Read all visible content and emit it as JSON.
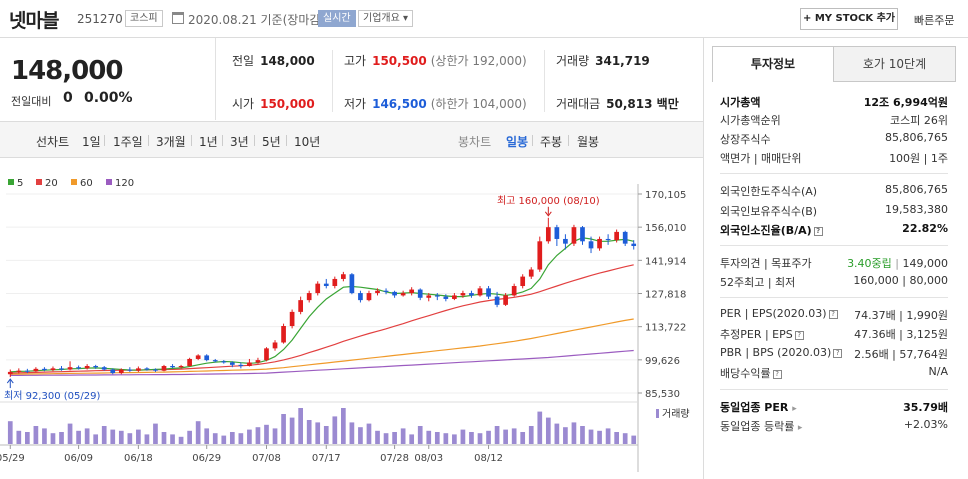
{
  "header": {
    "stock_name": "넷마블",
    "stock_code": "251270",
    "market": "코스피",
    "date": "2020.08.21 기준(장마감)",
    "realtime": "실시간",
    "company_info": "기업개요 ▾",
    "mystock": "+ MY STOCK 추가",
    "quick_order": "빠른주문"
  },
  "price": {
    "current": "148,000",
    "vs_label": "전일대비",
    "vs_value": "0",
    "vs_rate": "0.00%"
  },
  "quote": {
    "prev_label": "전일",
    "prev": "148,000",
    "high_label": "고가",
    "high": "150,500",
    "upper_limit": "(상한가 192,000)",
    "volume_label": "거래량",
    "volume": "341,719",
    "open_label": "시가",
    "open": "150,000",
    "low_label": "저가",
    "low": "146,500",
    "lower_limit": "(하한가 104,000)",
    "amount_label": "거래대금",
    "amount": "50,813 백만"
  },
  "period_bar": {
    "line": "선차트",
    "p1d": "1일",
    "p1w": "1주일",
    "p3m": "3개월",
    "p1y": "1년",
    "p3y": "3년",
    "p5y": "5년",
    "p10y": "10년",
    "candle": "봉차트",
    "daily": "일봉",
    "weekly": "주봉",
    "monthly": "월봉"
  },
  "colors": {
    "up": "#e01d1d",
    "down": "#1d5dd8",
    "ma5": "#3aa535",
    "ma20": "#e24040",
    "ma60": "#f09a2a",
    "ma120": "#9b5cc0",
    "volume": "#9b8ad1"
  },
  "chart_data": {
    "type": "candlestick",
    "legend": [
      "5",
      "20",
      "60",
      "120"
    ],
    "y_ticks": [
      "170,105",
      "156,010",
      "141,914",
      "127,818",
      "113,722",
      "99,626",
      "85,530"
    ],
    "y_tick_values": [
      170105,
      156010,
      141914,
      127818,
      113722,
      99626,
      85530
    ],
    "x_labels": [
      "05/29",
      "06/09",
      "06/18",
      "06/29",
      "07/08",
      "07/17",
      "07/28",
      "08/03",
      "08/12"
    ],
    "high_annotation": "최고 160,000 (08/10)",
    "low_annotation": "최저 92,300 (05/29)",
    "volume_label": "거래량",
    "candles": [
      {
        "o": 93500,
        "c": 94500,
        "h": 95500,
        "l": 92300
      },
      {
        "o": 94500,
        "c": 95000,
        "h": 96000,
        "l": 93800
      },
      {
        "o": 95000,
        "c": 94800,
        "h": 95800,
        "l": 94000
      },
      {
        "o": 94800,
        "c": 95800,
        "h": 96500,
        "l": 94500
      },
      {
        "o": 95800,
        "c": 95300,
        "h": 96500,
        "l": 94800
      },
      {
        "o": 95300,
        "c": 96000,
        "h": 96800,
        "l": 94800
      },
      {
        "o": 96000,
        "c": 95500,
        "h": 97000,
        "l": 95000
      },
      {
        "o": 95500,
        "c": 96500,
        "h": 99000,
        "l": 95200
      },
      {
        "o": 96500,
        "c": 96000,
        "h": 97200,
        "l": 95500
      },
      {
        "o": 96000,
        "c": 97000,
        "h": 97800,
        "l": 95500
      },
      {
        "o": 97000,
        "c": 96500,
        "h": 97500,
        "l": 95800
      },
      {
        "o": 96500,
        "c": 95500,
        "h": 97000,
        "l": 95000
      },
      {
        "o": 95500,
        "c": 94000,
        "h": 96000,
        "l": 93500
      },
      {
        "o": 94000,
        "c": 95500,
        "h": 96000,
        "l": 93500
      },
      {
        "o": 95500,
        "c": 95000,
        "h": 96500,
        "l": 94500
      },
      {
        "o": 95000,
        "c": 96000,
        "h": 96800,
        "l": 94500
      },
      {
        "o": 96000,
        "c": 95500,
        "h": 96500,
        "l": 95000
      },
      {
        "o": 95500,
        "c": 95000,
        "h": 96000,
        "l": 94500
      },
      {
        "o": 95000,
        "c": 97000,
        "h": 97500,
        "l": 94800
      },
      {
        "o": 97000,
        "c": 96500,
        "h": 97800,
        "l": 96000
      },
      {
        "o": 96500,
        "c": 97000,
        "h": 97500,
        "l": 96000
      },
      {
        "o": 97000,
        "c": 100000,
        "h": 100500,
        "l": 96800
      },
      {
        "o": 100000,
        "c": 101500,
        "h": 102000,
        "l": 99500
      },
      {
        "o": 101500,
        "c": 99500,
        "h": 102000,
        "l": 99000
      },
      {
        "o": 99500,
        "c": 99000,
        "h": 100000,
        "l": 98500
      },
      {
        "o": 99000,
        "c": 98500,
        "h": 99500,
        "l": 98000
      },
      {
        "o": 98500,
        "c": 97500,
        "h": 99000,
        "l": 96500
      },
      {
        "o": 97500,
        "c": 97000,
        "h": 98500,
        "l": 96000
      },
      {
        "o": 97000,
        "c": 98500,
        "h": 100000,
        "l": 96800
      },
      {
        "o": 98500,
        "c": 99500,
        "h": 100500,
        "l": 98000
      },
      {
        "o": 99500,
        "c": 104500,
        "h": 105000,
        "l": 99000
      },
      {
        "o": 104500,
        "c": 107000,
        "h": 108000,
        "l": 103500
      },
      {
        "o": 107000,
        "c": 114000,
        "h": 115000,
        "l": 106500
      },
      {
        "o": 114000,
        "c": 120000,
        "h": 121000,
        "l": 113000
      },
      {
        "o": 120000,
        "c": 125000,
        "h": 126500,
        "l": 119000
      },
      {
        "o": 125000,
        "c": 128000,
        "h": 129000,
        "l": 124000
      },
      {
        "o": 128000,
        "c": 132000,
        "h": 133000,
        "l": 127000
      },
      {
        "o": 132000,
        "c": 131000,
        "h": 134000,
        "l": 130000
      },
      {
        "o": 131000,
        "c": 134000,
        "h": 135000,
        "l": 130000
      },
      {
        "o": 134000,
        "c": 136000,
        "h": 137000,
        "l": 133000
      },
      {
        "o": 136000,
        "c": 128000,
        "h": 136500,
        "l": 127500
      },
      {
        "o": 128000,
        "c": 125000,
        "h": 129000,
        "l": 124000
      },
      {
        "o": 125000,
        "c": 128000,
        "h": 129000,
        "l": 124500
      },
      {
        "o": 128000,
        "c": 129000,
        "h": 130000,
        "l": 127000
      },
      {
        "o": 129000,
        "c": 128500,
        "h": 130000,
        "l": 127500
      },
      {
        "o": 128500,
        "c": 127000,
        "h": 129000,
        "l": 126000
      },
      {
        "o": 127000,
        "c": 128000,
        "h": 129000,
        "l": 126500
      },
      {
        "o": 128000,
        "c": 129500,
        "h": 130500,
        "l": 127000
      },
      {
        "o": 129500,
        "c": 126000,
        "h": 130000,
        "l": 125000
      },
      {
        "o": 126000,
        "c": 127000,
        "h": 128000,
        "l": 124500
      },
      {
        "o": 127000,
        "c": 126500,
        "h": 128000,
        "l": 125000
      },
      {
        "o": 126500,
        "c": 125500,
        "h": 127500,
        "l": 124500
      },
      {
        "o": 125500,
        "c": 127000,
        "h": 128000,
        "l": 125000
      },
      {
        "o": 127000,
        "c": 128000,
        "h": 129000,
        "l": 126000
      },
      {
        "o": 128000,
        "c": 127000,
        "h": 129000,
        "l": 126000
      },
      {
        "o": 127000,
        "c": 130000,
        "h": 131000,
        "l": 126500
      },
      {
        "o": 130000,
        "c": 126500,
        "h": 131000,
        "l": 125500
      },
      {
        "o": 126500,
        "c": 123000,
        "h": 128500,
        "l": 122000
      },
      {
        "o": 123000,
        "c": 127000,
        "h": 128000,
        "l": 122500
      },
      {
        "o": 127000,
        "c": 131000,
        "h": 132000,
        "l": 126500
      },
      {
        "o": 131000,
        "c": 135000,
        "h": 136000,
        "l": 130000
      },
      {
        "o": 135000,
        "c": 138000,
        "h": 139000,
        "l": 134000
      },
      {
        "o": 138000,
        "c": 150000,
        "h": 152000,
        "l": 137000
      },
      {
        "o": 150000,
        "c": 156000,
        "h": 160000,
        "l": 149000
      },
      {
        "o": 156000,
        "c": 151000,
        "h": 157000,
        "l": 148000
      },
      {
        "o": 151000,
        "c": 149000,
        "h": 153000,
        "l": 146500
      },
      {
        "o": 149000,
        "c": 156000,
        "h": 157000,
        "l": 148000
      },
      {
        "o": 156000,
        "c": 150000,
        "h": 156500,
        "l": 148500
      },
      {
        "o": 150000,
        "c": 147000,
        "h": 152000,
        "l": 145000
      },
      {
        "o": 147000,
        "c": 151000,
        "h": 152000,
        "l": 146000
      },
      {
        "o": 151000,
        "c": 150500,
        "h": 153000,
        "l": 148500
      },
      {
        "o": 150500,
        "c": 154000,
        "h": 155000,
        "l": 149500
      },
      {
        "o": 154000,
        "c": 149000,
        "h": 154500,
        "l": 148000
      },
      {
        "o": 149000,
        "c": 148000,
        "h": 150500,
        "l": 146500
      }
    ],
    "volumes": [
      38,
      22,
      20,
      30,
      26,
      18,
      20,
      34,
      22,
      26,
      16,
      30,
      24,
      22,
      18,
      24,
      16,
      34,
      20,
      16,
      12,
      22,
      38,
      26,
      18,
      14,
      20,
      18,
      24,
      28,
      32,
      26,
      50,
      44,
      60,
      40,
      36,
      30,
      46,
      60,
      36,
      28,
      34,
      22,
      18,
      20,
      26,
      16,
      30,
      22,
      20,
      18,
      16,
      24,
      20,
      18,
      22,
      30,
      24,
      26,
      20,
      30,
      54,
      44,
      34,
      28,
      36,
      30,
      24,
      22,
      26,
      20,
      18,
      14
    ],
    "ma5": [
      94500,
      94700,
      94800,
      95000,
      95200,
      95400,
      95500,
      95800,
      95900,
      96100,
      96200,
      96000,
      95800,
      95500,
      95300,
      95200,
      95400,
      95600,
      95700,
      96000,
      96200,
      96800,
      97500,
      98200,
      98600,
      98900,
      98800,
      98400,
      98100,
      98400,
      99400,
      101000,
      104000,
      108000,
      113000,
      118000,
      122000,
      125500,
      128000,
      130500,
      130800,
      130500,
      130000,
      129500,
      128500,
      127800,
      128000,
      128200,
      127800,
      127500,
      127200,
      126800,
      126500,
      126500,
      127000,
      127500,
      127800,
      127500,
      127000,
      127500,
      128500,
      130000,
      134000,
      140000,
      144000,
      147000,
      150000,
      151500,
      151000,
      150000,
      150000,
      150500,
      150800,
      150000
    ],
    "ma20": [
      94000,
      94100,
      94200,
      94300,
      94400,
      94500,
      94600,
      94700,
      94800,
      94900,
      95000,
      95100,
      95150,
      95200,
      95250,
      95300,
      95350,
      95400,
      95500,
      95550,
      95700,
      95900,
      96100,
      96300,
      96500,
      96700,
      96900,
      97100,
      97300,
      97700,
      98200,
      98800,
      99600,
      100500,
      101500,
      102700,
      103800,
      105000,
      106200,
      107500,
      108600,
      109700,
      110800,
      111800,
      112800,
      113900,
      115000,
      116200,
      117300,
      118400,
      119500,
      120600,
      121600,
      122600,
      123400,
      124200,
      124800,
      125300,
      125700,
      126200,
      126800,
      127500,
      128600,
      129800,
      131000,
      132200,
      133300,
      134400,
      135500,
      136500,
      137400,
      138300,
      139200,
      140000
    ],
    "ma60": [
      93500,
      93550,
      93600,
      93650,
      93700,
      93750,
      93800,
      93850,
      93900,
      93950,
      94000,
      94050,
      94100,
      94150,
      94200,
      94250,
      94300,
      94350,
      94400,
      94500,
      94600,
      94700,
      94800,
      94900,
      95000,
      95100,
      95200,
      95300,
      95400,
      95500,
      95700,
      96000,
      96300,
      96700,
      97100,
      97500,
      97900,
      98300,
      98700,
      99100,
      99500,
      99900,
      100300,
      100700,
      101100,
      101500,
      101900,
      102300,
      102700,
      103100,
      103500,
      103900,
      104300,
      104700,
      105100,
      105500,
      106000,
      106500,
      107000,
      107500,
      108100,
      108700,
      109400,
      110100,
      110800,
      111500,
      112200,
      112900,
      113600,
      114300,
      115000,
      115700,
      116400,
      117000
    ],
    "ma120": [
      93000,
      93020,
      93040,
      93060,
      93080,
      93100,
      93120,
      93140,
      93160,
      93180,
      93200,
      93220,
      93240,
      93260,
      93280,
      93300,
      93320,
      93340,
      93360,
      93380,
      93400,
      93450,
      93500,
      93550,
      93600,
      93650,
      93700,
      93750,
      93800,
      93900,
      94000,
      94200,
      94400,
      94600,
      94800,
      95000,
      95200,
      95400,
      95600,
      95800,
      96000,
      96200,
      96400,
      96600,
      96800,
      97000,
      97200,
      97400,
      97600,
      97800,
      98000,
      98200,
      98400,
      98600,
      98800,
      99000,
      99200,
      99400,
      99600,
      99800,
      100000,
      100200,
      100400,
      100600,
      100900,
      101200,
      101500,
      101800,
      102100,
      102400,
      102700,
      103000,
      103300,
      103600
    ]
  },
  "tabs": {
    "invest": "투자정보",
    "hoga": "호가 10단계"
  },
  "info": {
    "market_cap_label": "시가총액",
    "market_cap": "12조 6,994억원",
    "rank_label": "시가총액순위",
    "rank": "코스피 26위",
    "shares_label": "상장주식수",
    "shares": "85,806,765",
    "face_label": "액면가 | 매매단위",
    "face": "100원 | 1주",
    "foreign_limit_label": "외국인한도주식수(A)",
    "foreign_limit": "85,806,765",
    "foreign_hold_label": "외국인보유주식수(B)",
    "foreign_hold": "19,583,380",
    "foreign_rate_label": "외국인소진율(B/A)",
    "foreign_rate": "22.82%",
    "opinion_label": "투자의견 | 목표주가",
    "opinion": "3.40중립",
    "target": "149,000",
    "w52_label": "52주최고 | 최저",
    "w52": "160,000 | 80,000",
    "per_label": "PER | EPS(2020.03)",
    "per": "74.37배 | 1,990원",
    "est_per_label": "추정PER | EPS",
    "est_per": "47.36배 | 3,125원",
    "pbr_label": "PBR | BPS (2020.03)",
    "pbr": "2.56배 | 57,764원",
    "dividend_label": "배당수익률",
    "dividend": "N/A",
    "sector_per_label": "동일업종 PER",
    "sector_per": "35.79배",
    "sector_rate_label": "동일업종 등락률",
    "sector_rate": "+2.03%"
  }
}
